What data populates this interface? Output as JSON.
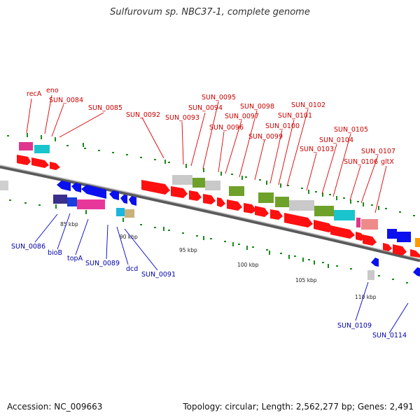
{
  "title": "Sulfurovum sp. NBC37-1, complete genome",
  "accession_label": "Accession: NC_009663",
  "summary_label": "Topology: circular; Length: 2,562,277 bp; Genes: 2,491",
  "colors": {
    "forward": "#ff0000",
    "reverse": "#0000ff",
    "label_forward": "#cc0000",
    "label_reverse": "#0000aa",
    "ruler": "#888888",
    "dots": "#1a8a1a"
  },
  "ruler_ticks": [
    "85 kbp",
    "90 kbp",
    "95 kbp",
    "100 kbp",
    "105 kbp",
    "110 kbp"
  ],
  "forward_labels": [
    "recA",
    "eno",
    "SUN_0084",
    "SUN_0085",
    "SUN_0092",
    "SUN_0093",
    "SUN_0094",
    "SUN_0095",
    "SUN_0096",
    "SUN_0097",
    "SUN_0098",
    "SUN_0099",
    "SUN_0100",
    "SUN_0101",
    "SUN_0102",
    "SUN_0103",
    "SUN_0104",
    "SUN_0105",
    "SUN_0106",
    "SUN_0107",
    "gltX"
  ],
  "reverse_labels": [
    "SUN_0086",
    "bioB",
    "topA",
    "SUN_0089",
    "dcd",
    "SUN_0091",
    "SUN_0109",
    "SUN_0114"
  ]
}
